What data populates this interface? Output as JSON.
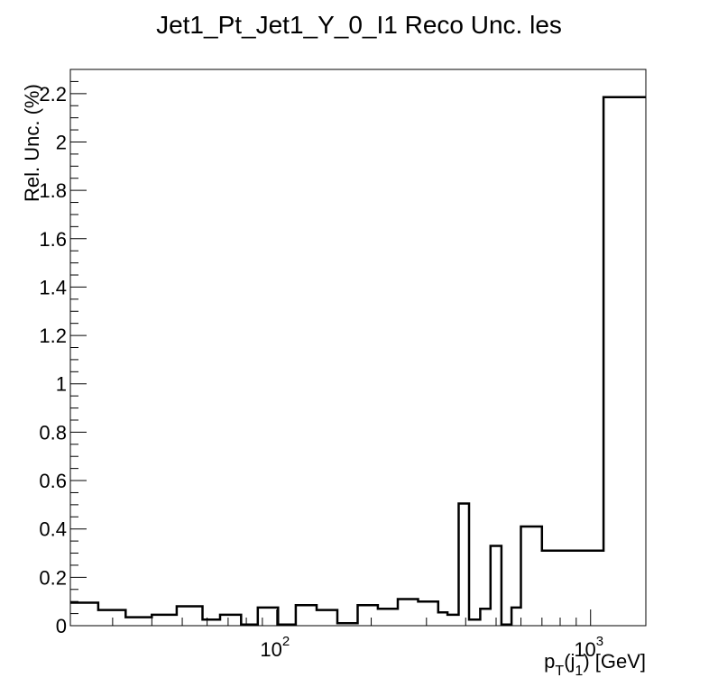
{
  "chart_data": {
    "type": "histogram",
    "title": "Jet1_Pt_Jet1_Y_0_I1 Reco Unc. les",
    "xlabel": {
      "base": "p",
      "sub1": "T",
      "open": "(j",
      "sub2": "1",
      "close": ") [GeV]"
    },
    "ylabel": "Rel. Unc. (%)",
    "xscale": "log",
    "xlim": [
      22,
      1500
    ],
    "ylim": [
      0,
      2.3
    ],
    "y_ticks": [
      "0",
      "0.2",
      "0.4",
      "0.6",
      "0.8",
      "1",
      "1.2",
      "1.4",
      "1.6",
      "1.8",
      "2",
      "2.2"
    ],
    "x_ticks": [
      {
        "value": 100,
        "base": "10",
        "exp": "2"
      },
      {
        "value": 1000,
        "base": "10",
        "exp": "3"
      }
    ],
    "grid": false,
    "line_color": "#000000",
    "bins": [
      {
        "lo": 22,
        "hi": 27,
        "value": 0.095
      },
      {
        "lo": 27,
        "hi": 33,
        "value": 0.065
      },
      {
        "lo": 33,
        "hi": 40,
        "value": 0.035
      },
      {
        "lo": 40,
        "hi": 48,
        "value": 0.045
      },
      {
        "lo": 48,
        "hi": 58,
        "value": 0.08
      },
      {
        "lo": 58,
        "hi": 66,
        "value": 0.025
      },
      {
        "lo": 66,
        "hi": 77,
        "value": 0.045
      },
      {
        "lo": 77,
        "hi": 87,
        "value": 0.005
      },
      {
        "lo": 87,
        "hi": 101,
        "value": 0.075
      },
      {
        "lo": 101,
        "hi": 115,
        "value": 0.005
      },
      {
        "lo": 115,
        "hi": 134,
        "value": 0.085
      },
      {
        "lo": 134,
        "hi": 156,
        "value": 0.065
      },
      {
        "lo": 156,
        "hi": 181,
        "value": 0.01
      },
      {
        "lo": 181,
        "hi": 210,
        "value": 0.085
      },
      {
        "lo": 210,
        "hi": 243,
        "value": 0.07
      },
      {
        "lo": 243,
        "hi": 282,
        "value": 0.11
      },
      {
        "lo": 282,
        "hi": 327,
        "value": 0.1
      },
      {
        "lo": 327,
        "hi": 350,
        "value": 0.055
      },
      {
        "lo": 350,
        "hi": 380,
        "value": 0.045
      },
      {
        "lo": 380,
        "hi": 410,
        "value": 0.505
      },
      {
        "lo": 410,
        "hi": 445,
        "value": 0.025
      },
      {
        "lo": 445,
        "hi": 480,
        "value": 0.07
      },
      {
        "lo": 480,
        "hi": 520,
        "value": 0.33
      },
      {
        "lo": 520,
        "hi": 560,
        "value": 0.005
      },
      {
        "lo": 560,
        "hi": 600,
        "value": 0.075
      },
      {
        "lo": 600,
        "hi": 700,
        "value": 0.41
      },
      {
        "lo": 700,
        "hi": 1100,
        "value": 0.31
      },
      {
        "lo": 1100,
        "hi": 1500,
        "value": 2.185
      }
    ]
  }
}
